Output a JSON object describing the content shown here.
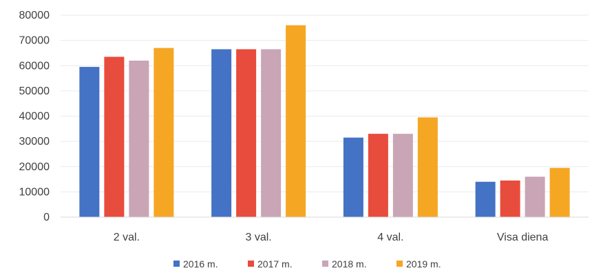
{
  "chart_data": {
    "type": "bar",
    "categories": [
      "2 val.",
      "3 val.",
      "4 val.",
      "Visa diena"
    ],
    "series": [
      {
        "name": "2016 m.",
        "color": "#4472C4",
        "values": [
          59500,
          66500,
          31500,
          14000
        ]
      },
      {
        "name": "2017 m.",
        "color": "#E74C3C",
        "values": [
          63500,
          66500,
          33000,
          14500
        ]
      },
      {
        "name": "2018 m.",
        "color": "#C9A5B5",
        "values": [
          62000,
          66500,
          33000,
          16000
        ]
      },
      {
        "name": "2019 m.",
        "color": "#F5A623",
        "values": [
          67000,
          76000,
          39500,
          19500
        ]
      }
    ],
    "ylim": [
      0,
      80000
    ],
    "yticks": [
      "0",
      "10000",
      "20000",
      "30000",
      "40000",
      "50000",
      "60000",
      "70000",
      "80000"
    ],
    "ytick_values": [
      0,
      10000,
      20000,
      30000,
      40000,
      50000,
      60000,
      70000,
      80000
    ],
    "grid": true,
    "legend_position": "bottom",
    "title": "",
    "xlabel": "",
    "ylabel": ""
  }
}
